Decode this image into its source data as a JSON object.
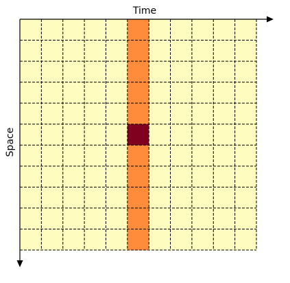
{
  "axes": {
    "x_label": "Time",
    "y_label": "Space"
  }
}
